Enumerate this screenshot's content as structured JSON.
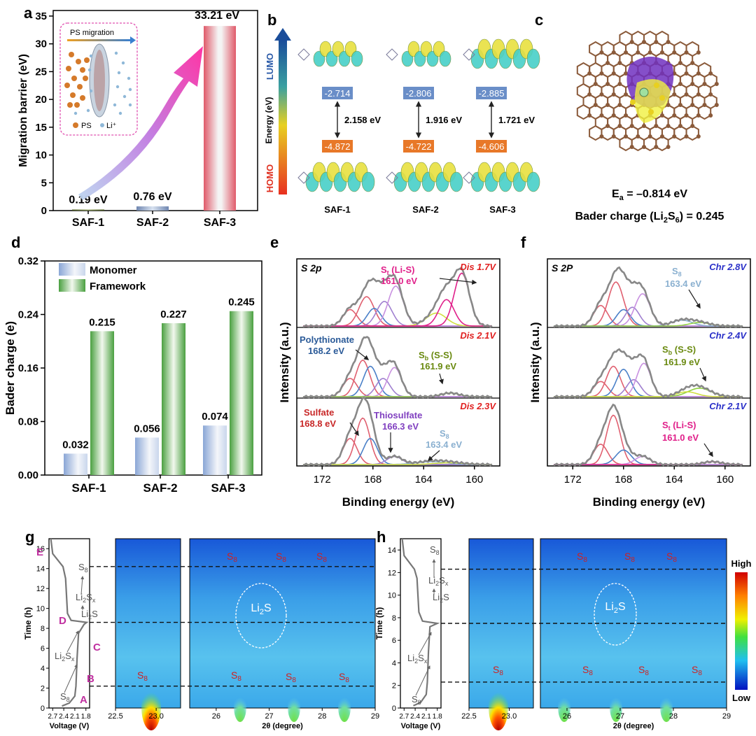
{
  "figure": {
    "panel_labels": [
      "a",
      "b",
      "c",
      "d",
      "e",
      "f",
      "g",
      "h"
    ]
  },
  "chart_data": [
    {
      "id": "a",
      "type": "bar",
      "ylabel": "Migration barrier (eV)",
      "ylim": [
        0,
        36
      ],
      "yticks": [
        0,
        5,
        10,
        15,
        20,
        25,
        30,
        35
      ],
      "categories": [
        "SAF-1",
        "SAF-2",
        "SAF-3"
      ],
      "values": [
        0.19,
        0.76,
        33.21
      ],
      "value_labels": [
        "0.19 eV",
        "0.76 eV",
        "33.21 eV"
      ],
      "colors": [
        "#5a6a2a",
        "#7c93b8",
        "#e06070"
      ],
      "inset": {
        "title": "PS migration",
        "legend": [
          "PS",
          "Li⁺"
        ]
      }
    },
    {
      "id": "b",
      "type": "diagram",
      "ylabel": "Energy (eV)",
      "top_label": "LUMO",
      "bottom_label": "HOMO",
      "categories": [
        "SAF-1",
        "SAF-2",
        "SAF-3"
      ],
      "lumo": [
        "-2.714",
        "-2.806",
        "-2.885"
      ],
      "homo": [
        "-4.872",
        "-4.722",
        "-4.606"
      ],
      "gaps": [
        "2.158 eV",
        "1.916 eV",
        "1.721 eV"
      ]
    },
    {
      "id": "c",
      "type": "diagram",
      "ea_label": "E",
      "ea_sub": "a",
      "ea_value": " = –0.814 eV",
      "bader_prefix": "Bader charge (Li",
      "bader_sub1": "2",
      "bader_mid": "S",
      "bader_sub2": "6",
      "bader_suffix": ") = 0.245"
    },
    {
      "id": "d",
      "type": "bar",
      "ylabel": "Bader charge (e)",
      "ylim": [
        0,
        0.32
      ],
      "yticks": [
        "0.00",
        "0.08",
        "0.16",
        "0.24",
        "0.32"
      ],
      "categories": [
        "SAF-1",
        "SAF-2",
        "SAF-3"
      ],
      "series": [
        {
          "name": "Monomer",
          "values": [
            0.032,
            0.056,
            0.074
          ],
          "labels": [
            "0.032",
            "0.056",
            "0.074"
          ],
          "color": "#9fb4d8"
        },
        {
          "name": "Framework",
          "values": [
            0.215,
            0.227,
            0.245
          ],
          "labels": [
            "0.215",
            "0.227",
            "0.245"
          ],
          "color": "#5aa845"
        }
      ]
    },
    {
      "id": "e",
      "type": "line",
      "xlabel": "Binding energy (eV)",
      "ylabel": "Intensity (a.u.)",
      "xlim": [
        174,
        158
      ],
      "xticks": [
        "172",
        "168",
        "164",
        "160"
      ],
      "title": "S 2p",
      "subpanels": [
        {
          "condition": "Dis 1.7V",
          "notes": [
            "S",
            "t",
            " (Li-S)",
            "161.0 eV"
          ]
        },
        {
          "condition": "Dis 2.1V",
          "notes": [
            "Polythionate",
            "168.2 eV",
            "S",
            "b",
            " (S-S)",
            "161.9 eV"
          ]
        },
        {
          "condition": "Dis 2.3V",
          "notes": [
            "Sulfate",
            "168.8 eV",
            "Thiosulfate",
            "166.3 eV",
            "S",
            "8",
            "163.4 eV"
          ]
        }
      ]
    },
    {
      "id": "f",
      "type": "line",
      "xlabel": "Binding energy (eV)",
      "ylabel": "Intensity (a.u.)",
      "xlim": [
        174,
        158
      ],
      "xticks": [
        "172",
        "168",
        "164",
        "160"
      ],
      "title": "S 2P",
      "subpanels": [
        {
          "condition": "Chr 2.8V",
          "notes": [
            "S",
            "8",
            "163.4 eV"
          ]
        },
        {
          "condition": "Chr 2.4V",
          "notes": [
            "S",
            "b",
            " (S-S)",
            "161.9 eV"
          ]
        },
        {
          "condition": "Chr 2.1V",
          "notes": [
            "S",
            "t",
            " (Li-S)",
            "161.0 eV"
          ]
        }
      ]
    },
    {
      "id": "g",
      "type": "heatmap",
      "ylabel": "Time (h)",
      "yticks": [
        "0",
        "2",
        "4",
        "6",
        "8",
        "10",
        "12",
        "14",
        "16"
      ],
      "voltage_label": "Voltage (V)",
      "voltage_ticks": [
        "2.7",
        "2.4",
        "2.1",
        "1.8"
      ],
      "x_label": "2θ (degree)",
      "x_ticks_left": [
        "22.5",
        "23.0"
      ],
      "x_ticks_right": [
        "26",
        "27",
        "28",
        "29"
      ],
      "stage_letters": [
        "A",
        "B",
        "C",
        "D",
        "E"
      ],
      "species": [
        "S8",
        "Li2Sx",
        "Li2S"
      ],
      "dashed_times": [
        2.2,
        8.6,
        14.2
      ],
      "ellipse_label": "Li2S"
    },
    {
      "id": "h",
      "type": "heatmap",
      "ylabel": "Time (h)",
      "yticks": [
        "0",
        "2",
        "4",
        "6",
        "8",
        "10",
        "12",
        "14"
      ],
      "voltage_label": "Voltage (V)",
      "voltage_ticks": [
        "2.7",
        "2.4",
        "2.1",
        "1.8"
      ],
      "x_label": "2θ (degree)",
      "x_ticks_left": [
        "22.5",
        "23.0"
      ],
      "x_ticks_right": [
        "26",
        "27",
        "28",
        "29"
      ],
      "species": [
        "S8",
        "Li2Sx",
        "Li2S"
      ],
      "dashed_times": [
        2.3,
        7.5,
        12.3
      ],
      "ellipse_label": "Li2S",
      "colorbar": {
        "high": "High",
        "low": "Low"
      }
    }
  ]
}
